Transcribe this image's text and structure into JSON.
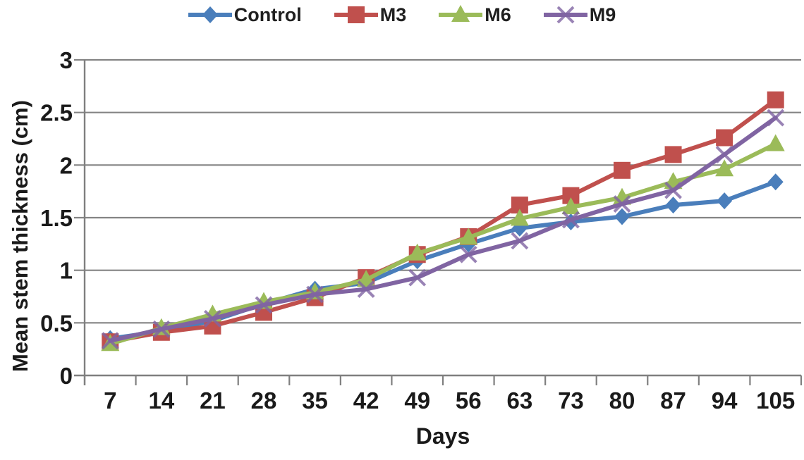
{
  "chart_data": {
    "type": "line",
    "title": "",
    "xlabel": "Days",
    "ylabel": "Mean stem thickness (cm)",
    "categories": [
      "7",
      "14",
      "21",
      "28",
      "35",
      "42",
      "49",
      "56",
      "63",
      "73",
      "80",
      "87",
      "94",
      "105"
    ],
    "y_axis": {
      "min": 0,
      "max": 3,
      "step": 0.5,
      "tick_labels": [
        "0",
        "0.5",
        "1",
        "1.5",
        "2",
        "2.5",
        "3"
      ]
    },
    "grid": "horizontal-only",
    "legend_position": "top",
    "series": [
      {
        "name": "Control",
        "marker": "diamond",
        "color": "#4A7EBB",
        "values": [
          0.35,
          0.42,
          0.52,
          0.68,
          0.82,
          0.88,
          1.09,
          1.25,
          1.4,
          1.46,
          1.51,
          1.62,
          1.66,
          1.84
        ]
      },
      {
        "name": "M3",
        "marker": "square",
        "color": "#C0504D",
        "values": [
          0.32,
          0.41,
          0.47,
          0.6,
          0.74,
          0.93,
          1.15,
          1.32,
          1.62,
          1.71,
          1.95,
          2.1,
          2.26,
          2.62
        ]
      },
      {
        "name": "M6",
        "marker": "triangle",
        "color": "#9BBB59",
        "values": [
          0.3,
          0.45,
          0.58,
          0.7,
          0.79,
          0.91,
          1.16,
          1.31,
          1.49,
          1.6,
          1.69,
          1.84,
          1.96,
          2.2
        ]
      },
      {
        "name": "M9",
        "marker": "x",
        "color": "#8064A2",
        "values": [
          0.33,
          0.44,
          0.54,
          0.67,
          0.77,
          0.82,
          0.93,
          1.15,
          1.28,
          1.48,
          1.63,
          1.76,
          2.1,
          2.45
        ]
      }
    ],
    "colors": {
      "grid": "#848484",
      "axis": "#7f7f7f",
      "text": "#1a1a1a"
    }
  }
}
